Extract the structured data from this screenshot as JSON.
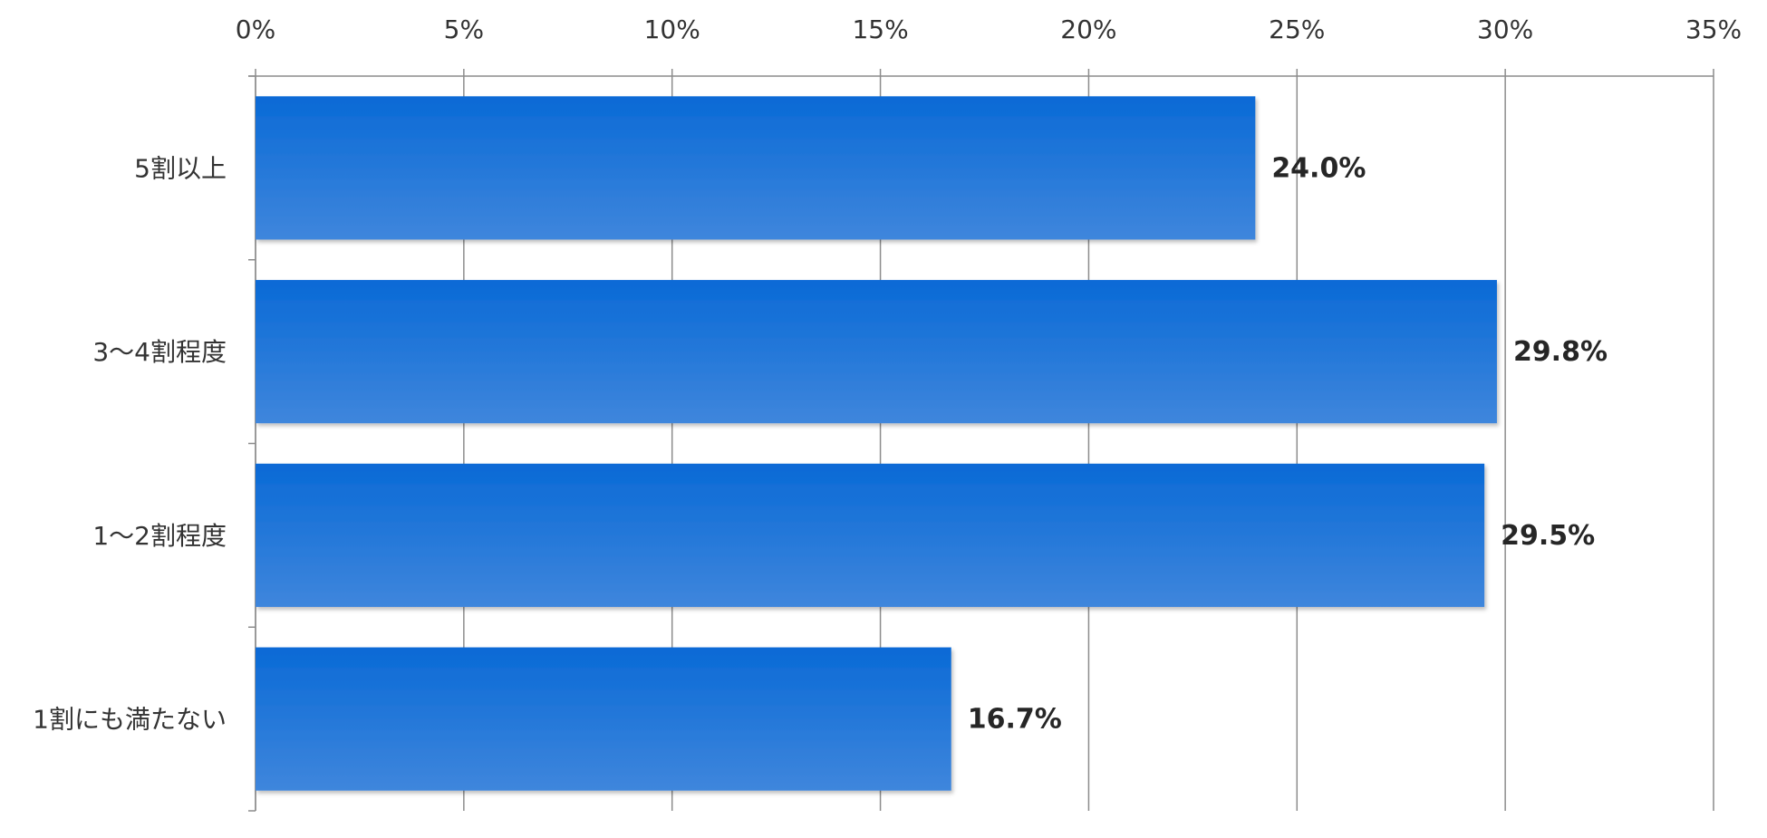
{
  "chart_data": {
    "type": "bar",
    "orientation": "horizontal",
    "categories": [
      "5割以上",
      "3～4割程度",
      "1～2割程度",
      "1割にも満たない"
    ],
    "values": [
      24.0,
      29.8,
      29.5,
      16.7
    ],
    "data_labels": [
      "24.0%",
      "29.8%",
      "29.5%",
      "16.7%"
    ],
    "xlim": [
      0,
      35
    ],
    "x_ticks": [
      0,
      5,
      10,
      15,
      20,
      25,
      30,
      35
    ],
    "x_tick_labels": [
      "0%",
      "5%",
      "10%",
      "15%",
      "20%",
      "25%",
      "30%",
      "35%"
    ],
    "x_axis_position": "top",
    "grid": true,
    "legend": "none",
    "colors": {
      "bar_top": "#0a6ad6",
      "bar_bottom": "#3f86dc",
      "grid": "#8c8c8c"
    }
  }
}
